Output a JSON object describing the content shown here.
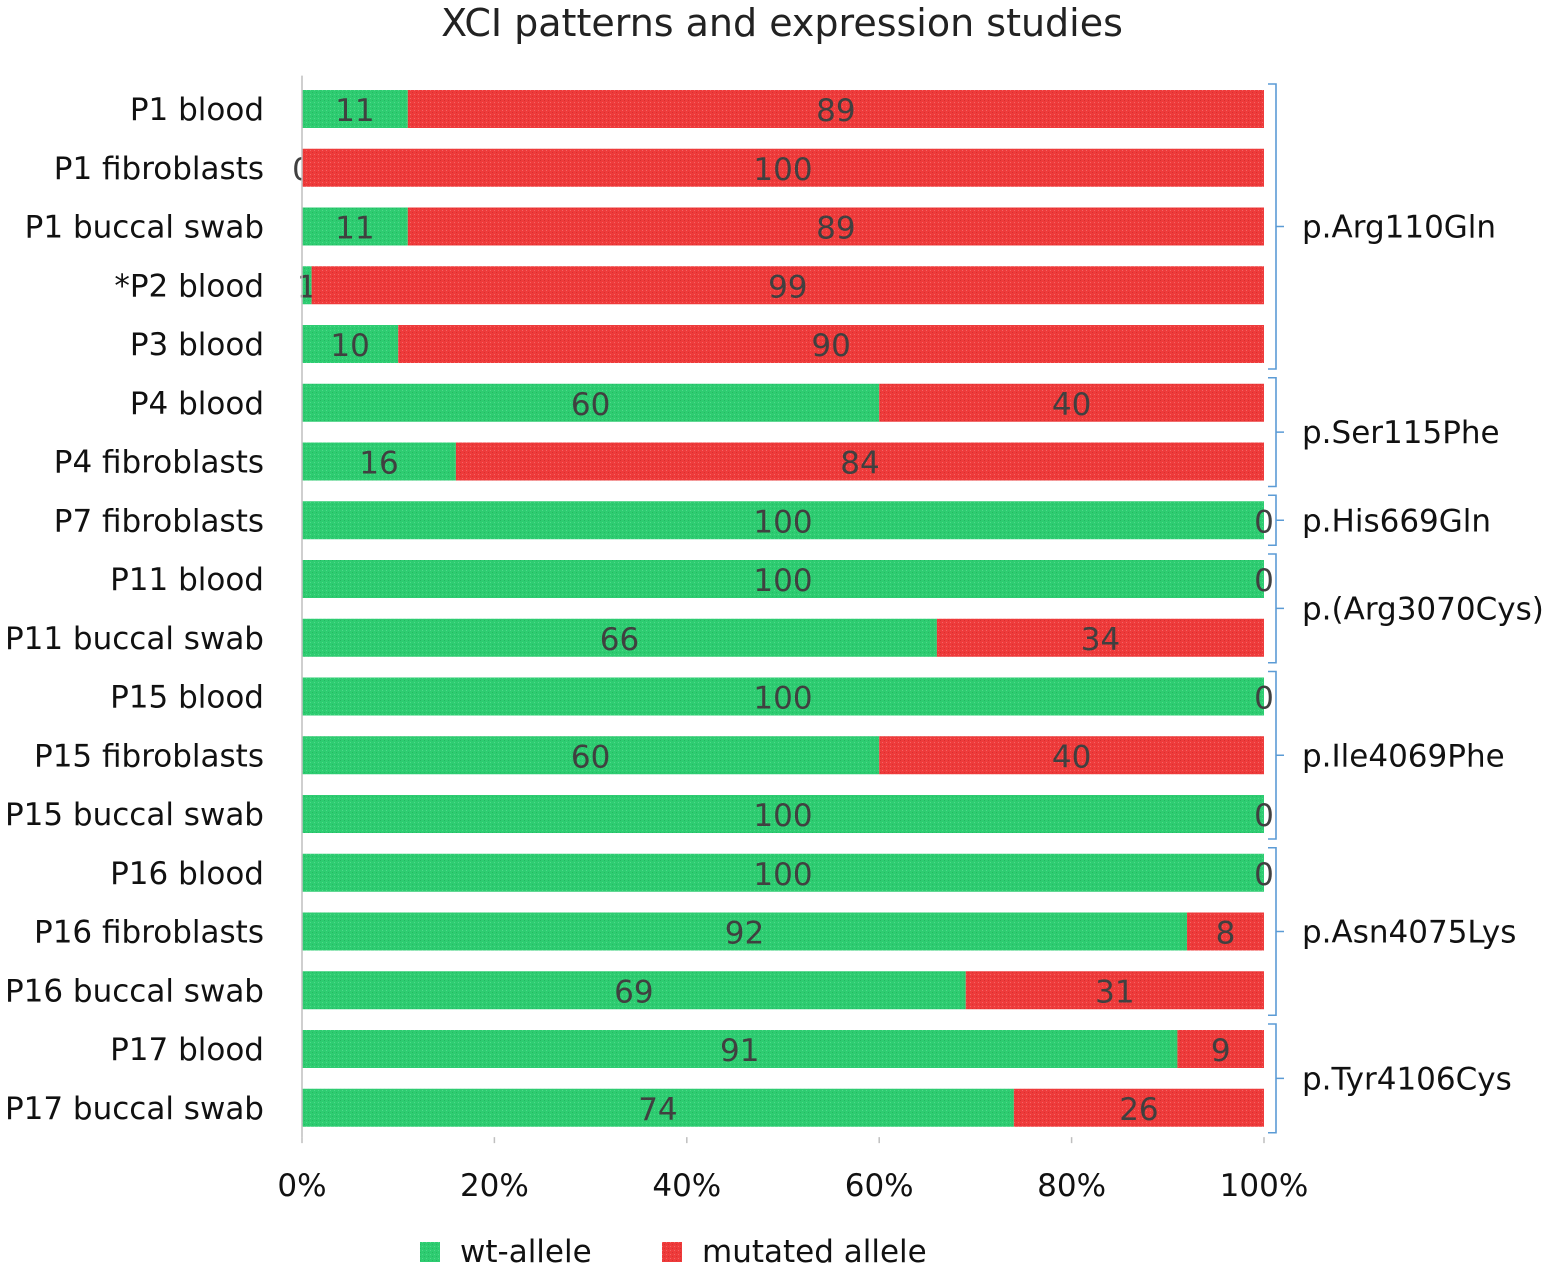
{
  "chart_data": {
    "type": "bar",
    "orientation": "horizontal",
    "stacked": "percent",
    "title": "XCI patterns and expression studies",
    "categories": [
      "P1 blood",
      "P1 fibroblasts",
      "P1 buccal swab",
      "*P2 blood",
      "P3 blood",
      "P4 blood",
      "P4 fibroblasts",
      "P7 fibroblasts",
      "P11 blood",
      "P11 buccal swab",
      "P15 blood",
      "P15 fibroblasts",
      "P15 buccal swab",
      "P16 blood",
      "P16 fibroblasts",
      "P16 buccal swab",
      "P17 blood",
      "P17 buccal swab"
    ],
    "series": [
      {
        "name": "wt-allele",
        "color": "#2ecc71",
        "values": [
          11,
          0,
          11,
          1,
          10,
          60,
          16,
          100,
          100,
          66,
          100,
          60,
          100,
          100,
          92,
          69,
          91,
          74
        ]
      },
      {
        "name": "mutated allele",
        "color": "#ee3b3b",
        "values": [
          89,
          100,
          89,
          99,
          90,
          40,
          84,
          0,
          0,
          34,
          0,
          40,
          0,
          0,
          8,
          31,
          9,
          26
        ]
      }
    ],
    "groups": [
      {
        "label": "p.Arg110Gln",
        "from": 0,
        "to": 4
      },
      {
        "label": "p.Ser115Phe",
        "from": 5,
        "to": 6
      },
      {
        "label": "p.His669Gln",
        "from": 7,
        "to": 7
      },
      {
        "label": "p.(Arg3070Cys)",
        "from": 8,
        "to": 9
      },
      {
        "label": "p.Ile4069Phe",
        "from": 10,
        "to": 12
      },
      {
        "label": "p.Asn4075Lys",
        "from": 13,
        "to": 15
      },
      {
        "label": "p.Tyr4106Cys",
        "from": 16,
        "to": 17
      }
    ],
    "x_ticks": [
      "0%",
      "20%",
      "40%",
      "60%",
      "80%",
      "100%"
    ],
    "xlim": [
      0,
      100
    ],
    "legend": {
      "position": "bottom",
      "entries": [
        "wt-allele",
        "mutated allele"
      ]
    },
    "bracket_color": "#5b9bd5"
  }
}
